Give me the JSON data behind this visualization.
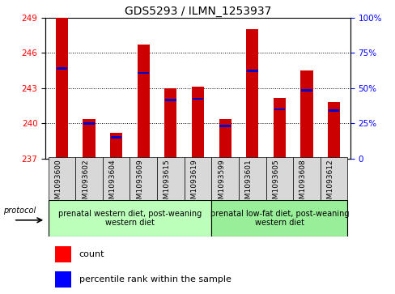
{
  "title": "GDS5293 / ILMN_1253937",
  "samples": [
    "GSM1093600",
    "GSM1093602",
    "GSM1093604",
    "GSM1093609",
    "GSM1093615",
    "GSM1093619",
    "GSM1093599",
    "GSM1093601",
    "GSM1093605",
    "GSM1093608",
    "GSM1093612"
  ],
  "red_values": [
    249.0,
    240.4,
    239.2,
    246.7,
    243.0,
    243.1,
    240.4,
    248.0,
    242.2,
    244.5,
    241.8
  ],
  "blue_values": [
    244.7,
    240.0,
    238.8,
    244.3,
    242.0,
    242.1,
    239.8,
    244.5,
    241.2,
    242.8,
    241.1
  ],
  "y_min": 237,
  "y_max": 249,
  "y_ticks_left": [
    237,
    240,
    243,
    246,
    249
  ],
  "y_ticks_right": [
    0,
    25,
    50,
    75,
    100
  ],
  "group1_label": "prenatal western diet, post-weaning\nwestern diet",
  "group2_label": "prenatal low-fat diet, post-weaning\nwestern diet",
  "group1_count": 6,
  "group2_count": 5,
  "legend_count": "count",
  "legend_percentile": "percentile rank within the sample",
  "bar_color": "#cc0000",
  "dot_color": "#0000cc",
  "group1_bg": "#bbffbb",
  "group2_bg": "#99ee99",
  "sample_bg": "#d8d8d8",
  "bar_width": 0.45,
  "title_fontsize": 10,
  "tick_fontsize": 7.5,
  "sample_fontsize": 6.5,
  "group_fontsize": 7,
  "legend_fontsize": 8
}
